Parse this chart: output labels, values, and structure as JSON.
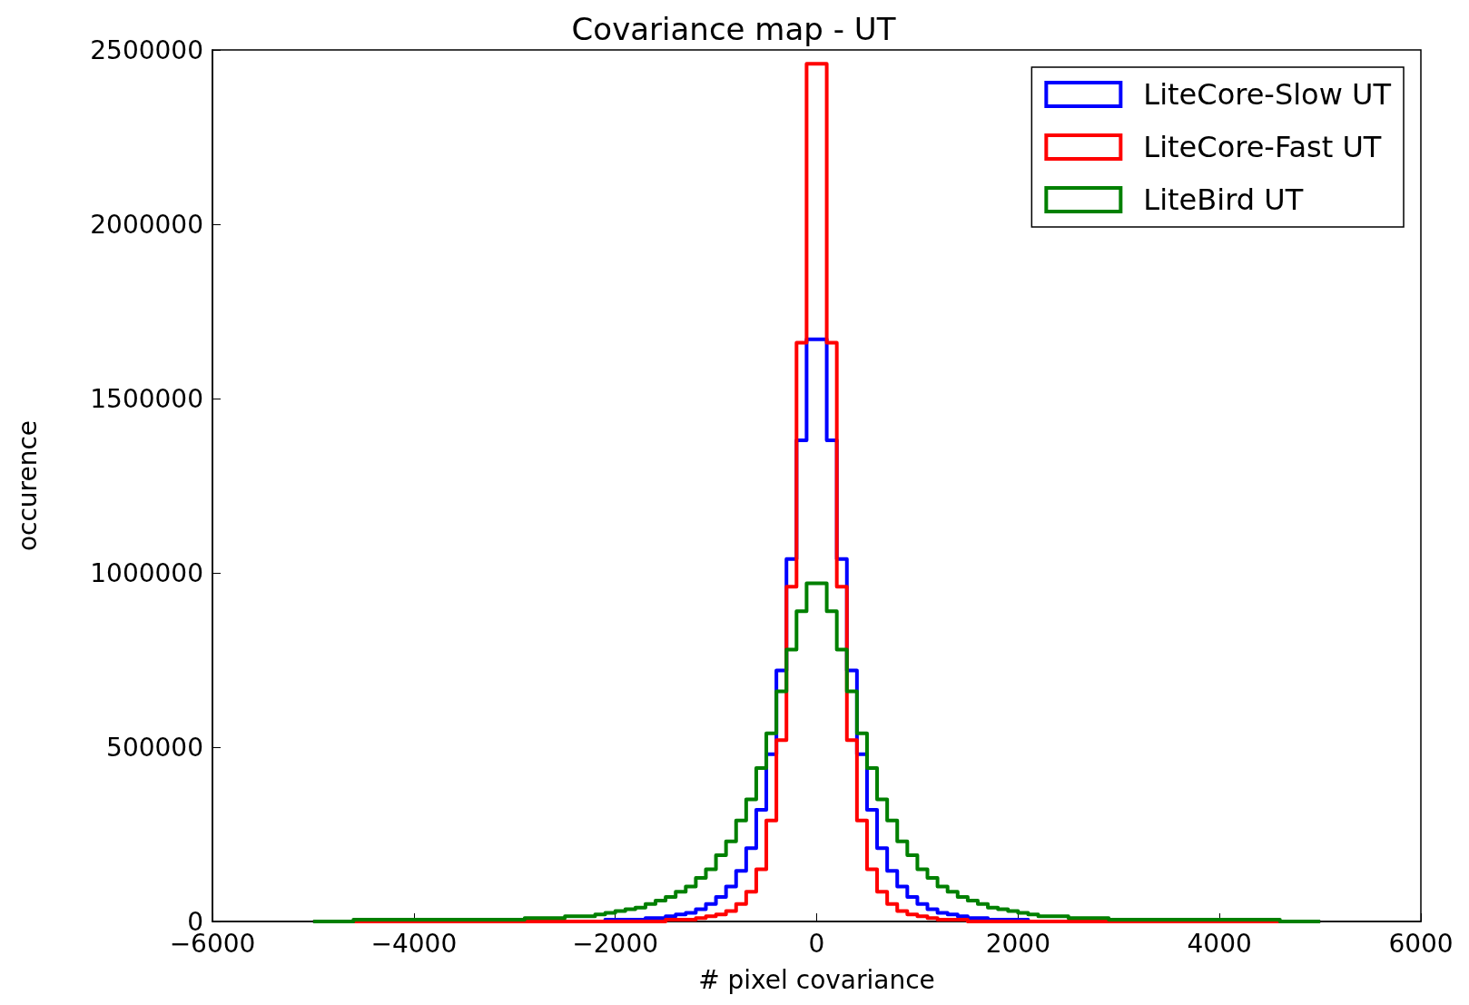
{
  "chart_data": {
    "type": "histogram",
    "title": "Covariance map - UT",
    "xlabel": "# pixel covariance",
    "ylabel": "occurence",
    "bins": [
      -5000,
      -4900,
      -4800,
      -4700,
      -4600,
      -4500,
      -4400,
      -4300,
      -4200,
      -4100,
      -4000,
      -3900,
      -3800,
      -3700,
      -3600,
      -3500,
      -3400,
      -3300,
      -3200,
      -3100,
      -3000,
      -2900,
      -2800,
      -2700,
      -2600,
      -2500,
      -2400,
      -2300,
      -2200,
      -2100,
      -2000,
      -1900,
      -1800,
      -1700,
      -1600,
      -1500,
      -1400,
      -1300,
      -1200,
      -1100,
      -1000,
      -900,
      -800,
      -700,
      -600,
      -500,
      -400,
      -300,
      -200,
      -100,
      100,
      200,
      300,
      400,
      500,
      600,
      700,
      800,
      900,
      1000,
      1100,
      1200,
      1300,
      1400,
      1500,
      1600,
      1700,
      1800,
      1900,
      2000,
      2100,
      2200,
      2300,
      2400,
      2500,
      2600,
      2700,
      2800,
      2900,
      3000,
      3100,
      3200,
      3300,
      3400,
      3500,
      3600,
      3700,
      3800,
      3900,
      4000,
      4100,
      4200,
      4300,
      4400,
      4500,
      4600,
      4700,
      4800,
      4900,
      5000
    ],
    "series": [
      {
        "name": "LiteCore-Slow UT",
        "color": "#0000ff",
        "values": [
          0,
          0,
          0,
          0,
          0,
          0,
          0,
          0,
          0,
          0,
          0,
          0,
          0,
          0,
          0,
          0,
          0,
          0,
          0,
          0,
          0,
          0,
          0,
          0,
          0,
          0,
          0,
          0,
          0,
          5000,
          5000,
          5000,
          5000,
          10000,
          10000,
          15000,
          20000,
          25000,
          35000,
          50000,
          70000,
          100000,
          145000,
          210000,
          320000,
          480000,
          720000,
          1040000,
          1380000,
          1670000,
          1380000,
          1040000,
          720000,
          480000,
          320000,
          210000,
          145000,
          100000,
          70000,
          50000,
          35000,
          25000,
          20000,
          15000,
          10000,
          10000,
          5000,
          5000,
          5000,
          5000,
          0,
          0,
          0,
          0,
          0,
          0,
          0,
          0,
          0,
          0,
          0,
          0,
          0,
          0,
          0,
          0,
          0,
          0,
          0,
          0,
          0,
          0,
          0,
          0,
          0,
          0,
          0,
          0,
          0
        ]
      },
      {
        "name": "LiteCore-Fast UT",
        "color": "#ff0000",
        "values": [
          0,
          0,
          0,
          0,
          0,
          0,
          0,
          0,
          0,
          0,
          0,
          0,
          0,
          0,
          0,
          0,
          0,
          0,
          0,
          0,
          0,
          0,
          0,
          0,
          0,
          0,
          0,
          0,
          0,
          0,
          0,
          0,
          0,
          0,
          0,
          5000,
          5000,
          5000,
          10000,
          15000,
          20000,
          30000,
          50000,
          85000,
          150000,
          290000,
          520000,
          960000,
          1660000,
          2460000,
          1660000,
          960000,
          520000,
          290000,
          150000,
          85000,
          50000,
          30000,
          20000,
          15000,
          10000,
          5000,
          5000,
          5000,
          0,
          0,
          0,
          0,
          0,
          0,
          0,
          0,
          0,
          0,
          0,
          0,
          0,
          0,
          0,
          0,
          0,
          0,
          0,
          0,
          0,
          0,
          0,
          0,
          0,
          0,
          0,
          0,
          0,
          0,
          0,
          0,
          0,
          0,
          0
        ]
      },
      {
        "name": "LiteBird UT",
        "color": "#008000",
        "values": [
          0,
          0,
          0,
          0,
          5000,
          5000,
          5000,
          5000,
          5000,
          5000,
          5000,
          5000,
          5000,
          5000,
          5000,
          5000,
          5000,
          5000,
          5000,
          5000,
          5000,
          10000,
          10000,
          10000,
          10000,
          15000,
          15000,
          15000,
          20000,
          25000,
          30000,
          35000,
          40000,
          50000,
          60000,
          70000,
          85000,
          100000,
          125000,
          150000,
          190000,
          230000,
          290000,
          350000,
          440000,
          540000,
          660000,
          780000,
          890000,
          970000,
          890000,
          780000,
          660000,
          540000,
          440000,
          350000,
          290000,
          230000,
          190000,
          150000,
          125000,
          100000,
          85000,
          70000,
          60000,
          50000,
          40000,
          35000,
          30000,
          25000,
          20000,
          15000,
          15000,
          15000,
          10000,
          10000,
          10000,
          10000,
          5000,
          5000,
          5000,
          5000,
          5000,
          5000,
          5000,
          5000,
          5000,
          5000,
          5000,
          5000,
          5000,
          5000,
          5000,
          5000,
          5000,
          0,
          0,
          0,
          0
        ]
      }
    ],
    "xlim": [
      -6000,
      6000
    ],
    "xticks": [
      {
        "value": -6000,
        "label": "−6000"
      },
      {
        "value": -4000,
        "label": "−4000"
      },
      {
        "value": -2000,
        "label": "−2000"
      },
      0,
      2000,
      4000,
      6000
    ],
    "ylim": [
      0,
      2500000
    ],
    "yticks": [
      0,
      500000,
      1000000,
      1500000,
      2000000,
      2500000
    ],
    "legend": "top right",
    "grid": false
  }
}
